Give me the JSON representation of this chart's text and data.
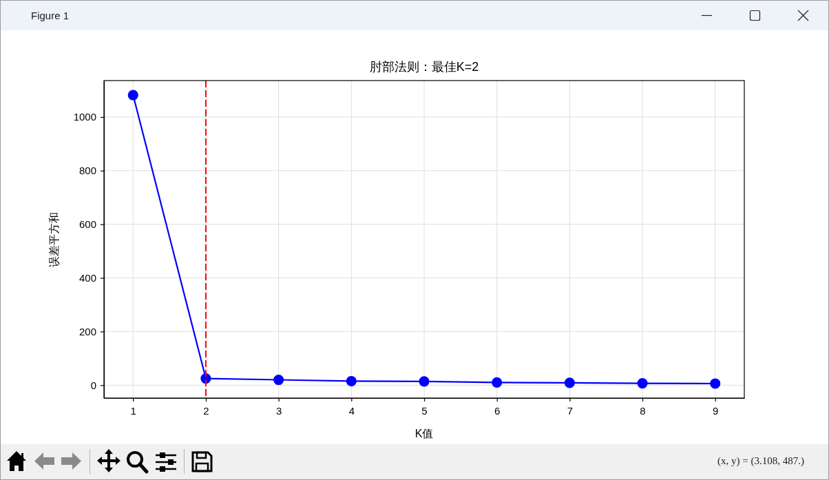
{
  "chart_data": {
    "type": "line",
    "title": "肘部法则：最佳K=2",
    "xlabel": "K值",
    "ylabel": "误差平方和",
    "annotations": [
      "Figure 1",
      "(x, y) = (3.108, 487.)"
    ],
    "x": [
      1,
      2,
      3,
      4,
      5,
      6,
      7,
      8,
      9
    ],
    "series": [
      {
        "color": "#0000ff",
        "values": [
          1082,
          25,
          20,
          15,
          14,
          10,
          9,
          7,
          6
        ]
      }
    ],
    "xlim": [
      0.6,
      9.4
    ],
    "ylim": [
      -48,
      1136
    ],
    "xticks": [
      1,
      2,
      3,
      4,
      5,
      6,
      7,
      8,
      9
    ],
    "yticks": [
      0,
      200,
      400,
      600,
      800,
      1000
    ],
    "grid": true,
    "marker": "circle",
    "line_style": "solid",
    "ref_lines": [
      {
        "axis": "x",
        "value": 2,
        "color": "#ff0000",
        "line_style": "dashed"
      }
    ]
  }
}
